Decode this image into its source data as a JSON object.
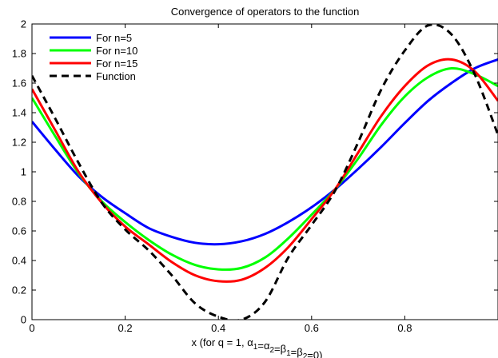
{
  "chart_data": {
    "type": "line",
    "title": "Convergence of operators to the function",
    "xlabel": {
      "prefix": "x (for q = 1, ",
      "parts": [
        {
          "base": "α",
          "sub": "1"
        },
        {
          "sep": "="
        },
        {
          "base": "α",
          "sub": "2"
        },
        {
          "sep": "="
        },
        {
          "base": "β",
          "sub": "1"
        },
        {
          "sep": "="
        },
        {
          "base": "β",
          "sub": "2"
        },
        {
          "sep": "=0)"
        }
      ]
    },
    "ylabel": "",
    "xlim": [
      0,
      1
    ],
    "ylim": [
      0,
      2
    ],
    "xticks": [
      0,
      0.2,
      0.4,
      0.6,
      0.8
    ],
    "xtick_labels": [
      "0",
      "0.2",
      "0.4",
      "0.6",
      "0.8"
    ],
    "yticks": [
      0,
      0.2,
      0.4,
      0.6,
      0.8,
      1,
      1.2,
      1.4,
      1.6,
      1.8,
      2
    ],
    "ytick_labels": [
      "0",
      "0.2",
      "0.4",
      "0.6",
      "0.8",
      "1",
      "1.2",
      "1.4",
      "1.6",
      "1.8",
      "2"
    ],
    "grid": false,
    "legend_position": "top-left",
    "series": [
      {
        "name": "For n=5",
        "color": "#0000ff",
        "dash": "solid",
        "x": [
          0,
          0.05,
          0.1,
          0.15,
          0.2,
          0.25,
          0.3,
          0.35,
          0.4,
          0.45,
          0.5,
          0.55,
          0.6,
          0.65,
          0.7,
          0.75,
          0.8,
          0.85,
          0.9,
          0.95,
          1.0
        ],
        "y": [
          1.34,
          1.15,
          0.97,
          0.83,
          0.72,
          0.62,
          0.56,
          0.52,
          0.51,
          0.53,
          0.58,
          0.66,
          0.76,
          0.88,
          1.02,
          1.17,
          1.33,
          1.48,
          1.6,
          1.7,
          1.76
        ]
      },
      {
        "name": "For n=10",
        "color": "#00ff00",
        "dash": "solid",
        "x": [
          0,
          0.05,
          0.1,
          0.15,
          0.2,
          0.25,
          0.3,
          0.35,
          0.4,
          0.45,
          0.5,
          0.55,
          0.6,
          0.65,
          0.7,
          0.75,
          0.8,
          0.85,
          0.9,
          0.95,
          1.0
        ],
        "y": [
          1.5,
          1.24,
          0.99,
          0.8,
          0.66,
          0.54,
          0.44,
          0.37,
          0.34,
          0.35,
          0.42,
          0.55,
          0.71,
          0.88,
          1.09,
          1.32,
          1.51,
          1.64,
          1.7,
          1.66,
          1.58
        ]
      },
      {
        "name": "For n=15",
        "color": "#ff0000",
        "dash": "solid",
        "x": [
          0,
          0.05,
          0.1,
          0.15,
          0.2,
          0.25,
          0.3,
          0.35,
          0.4,
          0.45,
          0.5,
          0.55,
          0.6,
          0.65,
          0.7,
          0.75,
          0.8,
          0.85,
          0.9,
          0.95,
          1.0
        ],
        "y": [
          1.56,
          1.28,
          1.0,
          0.79,
          0.63,
          0.51,
          0.39,
          0.3,
          0.26,
          0.27,
          0.35,
          0.49,
          0.68,
          0.88,
          1.13,
          1.38,
          1.58,
          1.72,
          1.76,
          1.68,
          1.48
        ]
      },
      {
        "name": "Function",
        "color": "#000000",
        "dash": "dashed",
        "x": [
          0,
          0.05,
          0.1,
          0.15,
          0.2,
          0.25,
          0.3,
          0.35,
          0.4,
          0.45,
          0.5,
          0.55,
          0.6,
          0.65,
          0.7,
          0.75,
          0.8,
          0.85,
          0.9,
          0.95,
          1.0
        ],
        "y": [
          1.65,
          1.36,
          1.06,
          0.79,
          0.61,
          0.47,
          0.3,
          0.11,
          0.02,
          0.0,
          0.12,
          0.42,
          0.64,
          0.87,
          1.2,
          1.56,
          1.82,
          1.99,
          1.93,
          1.66,
          1.25
        ]
      }
    ]
  }
}
